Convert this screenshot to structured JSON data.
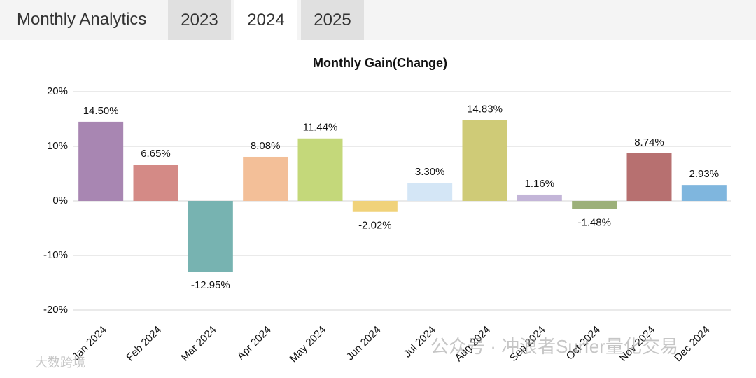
{
  "header": {
    "title": "Monthly Analytics",
    "tabs": [
      "2023",
      "2024",
      "2025"
    ],
    "active_tab": 1
  },
  "chart_data": {
    "type": "bar",
    "title": "Monthly Gain(Change)",
    "categories": [
      "Jan 2024",
      "Feb 2024",
      "Mar 2024",
      "Apr 2024",
      "May 2024",
      "Jun 2024",
      "Jul 2024",
      "Aug 2024",
      "Sep 2024",
      "Oct 2024",
      "Nov 2024",
      "Dec 2024"
    ],
    "values": [
      14.5,
      6.65,
      -12.95,
      8.08,
      11.44,
      -2.02,
      3.3,
      14.83,
      1.16,
      -1.48,
      8.74,
      2.93
    ],
    "value_labels": [
      "14.50%",
      "6.65%",
      "-12.95%",
      "8.08%",
      "11.44%",
      "-2.02%",
      "3.30%",
      "14.83%",
      "1.16%",
      "-1.48%",
      "8.74%",
      "2.93%"
    ],
    "colors": [
      "#a886b2",
      "#d48a86",
      "#77b3b1",
      "#f3bf98",
      "#c4d87a",
      "#f0d27a",
      "#d4e6f6",
      "#cfcb77",
      "#c3b5d8",
      "#9cb07a",
      "#b77070",
      "#7fb6de"
    ],
    "ylim": [
      -20,
      20
    ],
    "yticks": [
      {
        "value": -20,
        "label": "-20%"
      },
      {
        "value": -10,
        "label": "-10%"
      },
      {
        "value": 0,
        "label": "0%"
      },
      {
        "value": 10,
        "label": "10%"
      },
      {
        "value": 20,
        "label": "20%"
      }
    ],
    "grid": true
  },
  "watermarks": [
    "公众号 · 冲浪者Surfer量化交易",
    "大数跨境"
  ]
}
